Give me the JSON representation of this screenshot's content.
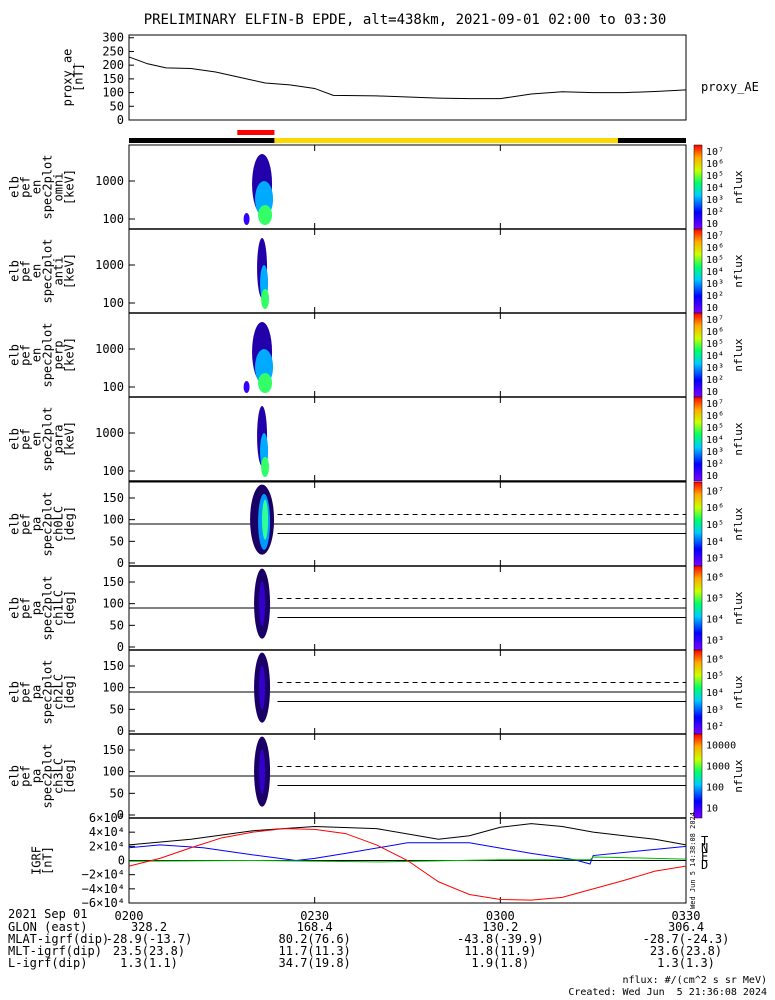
{
  "chart_data": {
    "type": "multi-panel-timeseries",
    "title": "PRELIMINARY ELFIN-B EPDE, alt=438km, 2021-09-01 02:00 to 03:30",
    "time_range_min": [
      0,
      90
    ],
    "time_ticks": [
      {
        "t": 0,
        "label": "0200"
      },
      {
        "t": 30,
        "label": "0230"
      },
      {
        "t": 60,
        "label": "0300"
      },
      {
        "t": 90,
        "label": "0330"
      }
    ],
    "bars": {
      "sci_zone": {
        "t_start": 17.5,
        "t_end": 23.5,
        "color": "#ff0000"
      },
      "black_1": {
        "t_start": 0,
        "t_end": 23.5,
        "color": "#000000"
      },
      "yellow": {
        "t_start": 23.5,
        "t_end": 79,
        "color": "#ffd800"
      },
      "black_2": {
        "t_start": 79,
        "t_end": 90,
        "color": "#000000"
      }
    },
    "proxy_ae": {
      "ylabel_lines": [
        "proxy_ae",
        "[nT]"
      ],
      "series_label": "proxy_AE",
      "yticks": [
        "0",
        "50",
        "100",
        "150",
        "200",
        "250",
        "300"
      ],
      "ylim": [
        0,
        310
      ],
      "t": [
        0,
        3,
        6,
        10,
        14,
        18,
        22,
        26,
        30,
        33,
        40,
        50,
        55,
        60,
        65,
        70,
        75,
        80,
        85,
        90
      ],
      "values": [
        230,
        205,
        190,
        188,
        175,
        155,
        135,
        128,
        115,
        90,
        88,
        80,
        78,
        78,
        95,
        103,
        100,
        100,
        104,
        110
      ]
    },
    "spectra": [
      {
        "ylabel_lines": [
          "elb",
          "pef",
          "en",
          "spec2plot",
          "omni",
          "[keV]"
        ],
        "yticks": [
          "100",
          "1000"
        ],
        "cbar_ticks": [
          "10",
          "10²",
          "10³",
          "10⁴",
          "10⁵",
          "10⁶",
          "10⁷"
        ],
        "cbar_label": "nflux"
      },
      {
        "ylabel_lines": [
          "elb",
          "pef",
          "en",
          "spec2plot",
          "anti",
          "[keV]"
        ],
        "yticks": [
          "100",
          "1000"
        ],
        "cbar_ticks": [
          "10",
          "10²",
          "10³",
          "10⁴",
          "10⁵",
          "10⁶",
          "10⁷"
        ],
        "cbar_label": "nflux"
      },
      {
        "ylabel_lines": [
          "elb",
          "pef",
          "en",
          "spec2plot",
          "perp",
          "[keV]"
        ],
        "yticks": [
          "100",
          "1000"
        ],
        "cbar_ticks": [
          "10",
          "10²",
          "10³",
          "10⁴",
          "10⁵",
          "10⁶",
          "10⁷"
        ],
        "cbar_label": "nflux"
      },
      {
        "ylabel_lines": [
          "elb",
          "pef",
          "en",
          "spec2plot",
          "para",
          "[keV]"
        ],
        "yticks": [
          "100",
          "1000"
        ],
        "cbar_ticks": [
          "10",
          "10²",
          "10³",
          "10⁴",
          "10⁵",
          "10⁶",
          "10⁷"
        ],
        "cbar_label": "nflux"
      }
    ],
    "pitch_angles": [
      {
        "ylabel_lines": [
          "elb",
          "pef",
          "pa",
          "spec2plot",
          "ch0LC",
          "[deg]"
        ],
        "yticks": [
          "0",
          "50",
          "100",
          "150"
        ],
        "cbar_ticks": [
          "10³",
          "10⁴",
          "10⁵",
          "10⁶",
          "10⁷"
        ],
        "cbar_label": "nflux"
      },
      {
        "ylabel_lines": [
          "elb",
          "pef",
          "pa",
          "spec2plot",
          "ch1LC",
          "[deg]"
        ],
        "yticks": [
          "0",
          "50",
          "100",
          "150"
        ],
        "cbar_ticks": [
          "10³",
          "10⁴",
          "10⁵",
          "10⁶"
        ],
        "cbar_label": "nflux"
      },
      {
        "ylabel_lines": [
          "elb",
          "pef",
          "pa",
          "spec2plot",
          "ch2LC",
          "[deg]"
        ],
        "yticks": [
          "0",
          "50",
          "100",
          "150"
        ],
        "cbar_ticks": [
          "10²",
          "10³",
          "10⁴",
          "10⁵",
          "10⁶"
        ],
        "cbar_label": "nflux"
      },
      {
        "ylabel_lines": [
          "elb",
          "pef",
          "pa",
          "spec2plot",
          "ch3LC",
          "[deg]"
        ],
        "yticks": [
          "0",
          "50",
          "100",
          "150"
        ],
        "cbar_ticks": [
          "10",
          "100",
          "1000",
          "10000"
        ],
        "cbar_label": "nflux"
      }
    ],
    "igrf": {
      "ylabel_lines": [
        "IGRF",
        "[nT]"
      ],
      "ylim": [
        -60000,
        60000
      ],
      "yticks": [
        {
          "v": 60000,
          "label": "6×10⁴"
        },
        {
          "v": 40000,
          "label": "4×10⁴"
        },
        {
          "v": 20000,
          "label": "2×10⁴"
        },
        {
          "v": 0,
          "label": "0"
        },
        {
          "v": -20000,
          "label": "−2×10⁴"
        },
        {
          "v": -40000,
          "label": "−4×10⁴"
        },
        {
          "v": -60000,
          "label": "−6×10⁴"
        }
      ],
      "side_text": "Wed Jun 5 14:38:08 2024",
      "series": [
        {
          "name": "T",
          "color": "#000000",
          "t": [
            0,
            10,
            20,
            30,
            40,
            50,
            55,
            60,
            65,
            70,
            75,
            80,
            85,
            90
          ],
          "values": [
            22000,
            30000,
            42000,
            48000,
            45000,
            30000,
            35000,
            47000,
            52000,
            48000,
            40000,
            35000,
            30000,
            22000
          ]
        },
        {
          "name": "N",
          "color": "#0000ff",
          "t": [
            0,
            5,
            12,
            20,
            27,
            30,
            35,
            45,
            55,
            65,
            72,
            74.5,
            75,
            90
          ],
          "values": [
            18000,
            22000,
            18000,
            8000,
            0,
            3000,
            10000,
            25000,
            25000,
            10000,
            1000,
            -5000,
            7000,
            20000
          ]
        },
        {
          "name": "E",
          "color": "#00bb00",
          "t": [
            0,
            20,
            40,
            60,
            74.5,
            75,
            80,
            90
          ],
          "values": [
            -1000,
            0,
            -2000,
            1000,
            1000,
            5000,
            4000,
            2000
          ]
        },
        {
          "name": "D",
          "color": "#ff0000",
          "t": [
            0,
            5,
            10,
            15,
            20,
            25,
            30,
            35,
            40,
            45,
            50,
            55,
            60,
            65,
            70,
            75,
            80,
            85,
            90
          ],
          "values": [
            -8000,
            3000,
            18000,
            32000,
            40000,
            45000,
            44000,
            38000,
            22000,
            0,
            -30000,
            -48000,
            -55000,
            -56000,
            -52000,
            -40000,
            -28000,
            -15000,
            -8000
          ]
        }
      ]
    }
  },
  "footer": {
    "date_label": "2021 Sep 01",
    "rows": [
      {
        "label": "GLON (east)",
        "values": [
          "328.2",
          "168.4",
          "130.2",
          "306.4"
        ]
      },
      {
        "label": "MLAT-igrf(dip)",
        "values": [
          "-28.9(-13.7)",
          "80.2(76.6)",
          "-43.8(-39.9)",
          "-28.7(-24.3)"
        ]
      },
      {
        "label": "MLT-igrf(dip)",
        "values": [
          "23.5(23.8)",
          "11.7(11.3)",
          "11.8(11.9)",
          "23.6(23.8)"
        ]
      },
      {
        "label": "L-igrf(dip)",
        "values": [
          "1.3(1.1)",
          "34.7(19.8)",
          "1.9(1.8)",
          "1.3(1.3)"
        ]
      }
    ],
    "units_note": "nflux: #/(cm^2 s sr MeV)",
    "created": "Created: Wed Jun  5 21:36:08 2024"
  }
}
